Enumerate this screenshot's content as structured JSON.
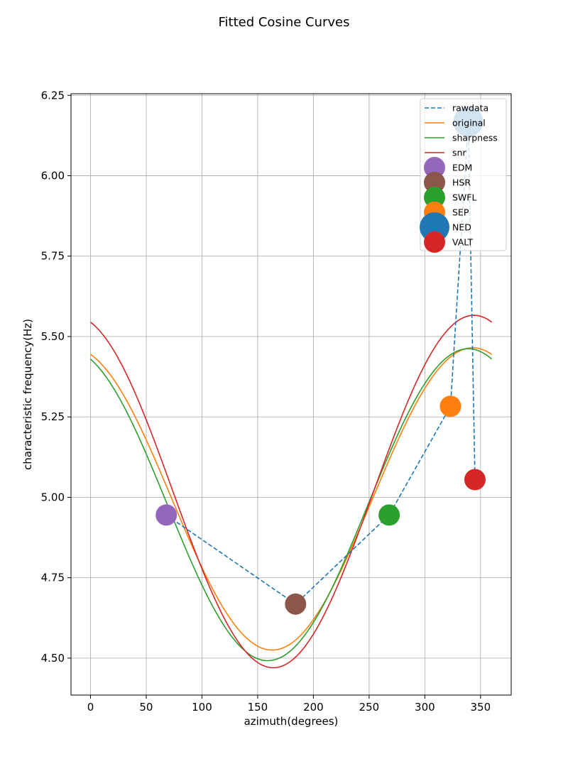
{
  "chart_data": {
    "type": "line",
    "title": "Fitted Cosine Curves",
    "xlabel": "azimuth(degrees)",
    "ylabel": "characteristic frequency(Hz)",
    "xlim": [
      -17.5,
      377.5
    ],
    "ylim": [
      4.385,
      6.255
    ],
    "xticks": [
      0,
      50,
      100,
      150,
      200,
      250,
      300,
      350
    ],
    "yticks": [
      4.5,
      4.75,
      5.0,
      5.25,
      5.5,
      5.75,
      6.0,
      6.25
    ],
    "ytick_labels": [
      "4.50",
      "4.75",
      "5.00",
      "5.25",
      "5.50",
      "5.75",
      "6.00",
      "6.25"
    ],
    "grid": true,
    "legend_position": "top-right",
    "rawdata": {
      "name": "rawdata",
      "color": "#1f77b4",
      "style": "dashed",
      "x": [
        68,
        184,
        268,
        323,
        339,
        345
      ],
      "y": [
        4.945,
        4.668,
        4.945,
        5.283,
        6.168,
        5.055
      ]
    },
    "curves": [
      {
        "name": "original",
        "color": "#ff7f0e",
        "mean": 4.995,
        "amplitude": 0.47,
        "phase_deg": 343
      },
      {
        "name": "sharpness",
        "color": "#2ca02c",
        "mean": 4.977,
        "amplitude": 0.485,
        "phase_deg": 339
      },
      {
        "name": "snr",
        "color": "#d62728",
        "mean": 5.018,
        "amplitude": 0.548,
        "phase_deg": 344
      }
    ],
    "markers": [
      {
        "name": "EDM",
        "x": 68,
        "y": 4.945,
        "color": "#9467bd",
        "size": "medium"
      },
      {
        "name": "HSR",
        "x": 184,
        "y": 4.668,
        "color": "#8c564b",
        "size": "medium"
      },
      {
        "name": "SWFL",
        "x": 268,
        "y": 4.945,
        "color": "#2ca02c",
        "size": "medium"
      },
      {
        "name": "SEP",
        "x": 323,
        "y": 5.283,
        "color": "#ff7f0e",
        "size": "medium"
      },
      {
        "name": "NED",
        "x": 339,
        "y": 6.168,
        "color": "#1f77b4",
        "size": "large"
      },
      {
        "name": "VALT",
        "x": 345,
        "y": 5.055,
        "color": "#d62728",
        "size": "medium"
      }
    ],
    "legend": [
      "rawdata",
      "original",
      "sharpness",
      "snr",
      "EDM",
      "HSR",
      "SWFL",
      "SEP",
      "NED",
      "VALT"
    ]
  }
}
